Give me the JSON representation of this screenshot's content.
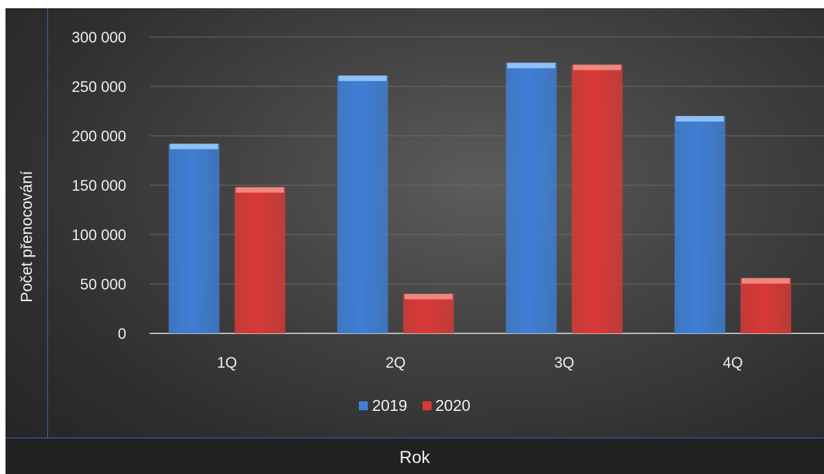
{
  "chart_data": {
    "type": "bar",
    "categories": [
      "1Q",
      "2Q",
      "3Q",
      "4Q"
    ],
    "series": [
      {
        "name": "2019",
        "values": [
          192000,
          261000,
          274000,
          220000
        ]
      },
      {
        "name": "2020",
        "values": [
          148000,
          40000,
          272000,
          56000
        ]
      }
    ],
    "xlabel": "Rok",
    "ylabel": "Počet přenocování",
    "ylim": [
      0,
      300000
    ],
    "yticks": [
      0,
      50000,
      100000,
      150000,
      200000,
      250000,
      300000
    ],
    "ytick_labels": [
      "0",
      "50 000",
      "100 000",
      "150 000",
      "200 000",
      "250 000",
      "300 000"
    ],
    "grid": true,
    "legend_position": "bottom",
    "colors": {
      "2019": "#3f7fd6",
      "2020": "#d93a36",
      "2019_top": "#8fc0f5",
      "2020_top": "#f08680"
    }
  }
}
